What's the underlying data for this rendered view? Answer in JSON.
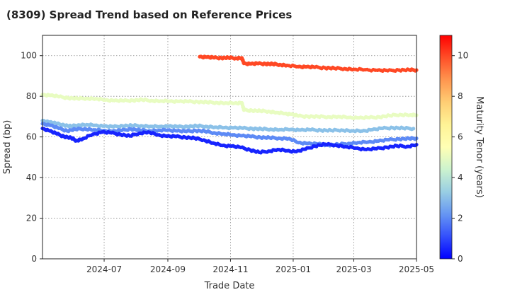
{
  "chart_data": {
    "type": "scatter",
    "title": "(8309)   Spread Trend based on Reference Prices",
    "xlabel": "Trade Date",
    "ylabel": "Spread (bp)",
    "xlim": [
      "2024-05-02",
      "2025-05-01"
    ],
    "ylim": [
      0,
      110
    ],
    "x_ticks": [
      "2024-07",
      "2024-09",
      "2024-11",
      "2025-01",
      "2025-03",
      "2025-05"
    ],
    "y_ticks": [
      0,
      20,
      40,
      60,
      80,
      100
    ],
    "grid": true,
    "colorbar": {
      "label": "Maturity Tenor (years)",
      "range": [
        0,
        11
      ],
      "ticks": [
        0,
        2,
        4,
        6,
        8,
        10
      ],
      "colormap": "rainbow"
    },
    "series": [
      {
        "tenor": 10.0,
        "points": [
          [
            "2024-10-02",
            99.5
          ],
          [
            "2024-10-09",
            99.3
          ],
          [
            "2024-10-16",
            99.0
          ],
          [
            "2024-10-23",
            98.9
          ],
          [
            "2024-10-30",
            99.0
          ],
          [
            "2024-11-06",
            98.8
          ],
          [
            "2024-11-12",
            98.9
          ],
          [
            "2024-11-14",
            96.2
          ],
          [
            "2024-11-21",
            96.0
          ],
          [
            "2024-11-28",
            96.1
          ],
          [
            "2024-12-05",
            96.0
          ],
          [
            "2024-12-12",
            95.9
          ],
          [
            "2024-12-19",
            95.6
          ],
          [
            "2024-12-26",
            95.2
          ],
          [
            "2025-01-06",
            94.6
          ],
          [
            "2025-01-14",
            94.5
          ],
          [
            "2025-01-22",
            94.3
          ],
          [
            "2025-02-01",
            94.0
          ],
          [
            "2025-02-10",
            93.8
          ],
          [
            "2025-02-20",
            93.6
          ],
          [
            "2025-03-01",
            93.3
          ],
          [
            "2025-03-12",
            93.1
          ],
          [
            "2025-03-24",
            92.8
          ],
          [
            "2025-04-03",
            92.6
          ],
          [
            "2025-04-14",
            92.9
          ],
          [
            "2025-04-24",
            93.0
          ],
          [
            "2025-05-01",
            92.9
          ]
        ]
      },
      {
        "tenor": 5.0,
        "points": [
          [
            "2024-05-02",
            80.8
          ],
          [
            "2024-05-10",
            80.5
          ],
          [
            "2024-05-18",
            79.8
          ],
          [
            "2024-05-27",
            79.2
          ],
          [
            "2024-06-05",
            78.9
          ],
          [
            "2024-06-14",
            79.0
          ],
          [
            "2024-06-23",
            78.8
          ],
          [
            "2024-07-02",
            78.2
          ],
          [
            "2024-07-11",
            77.9
          ],
          [
            "2024-07-20",
            77.8
          ],
          [
            "2024-07-29",
            78.0
          ],
          [
            "2024-08-07",
            78.3
          ],
          [
            "2024-08-16",
            77.9
          ],
          [
            "2024-08-25",
            77.7
          ],
          [
            "2024-09-03",
            77.6
          ],
          [
            "2024-09-12",
            77.5
          ],
          [
            "2024-09-21",
            77.4
          ],
          [
            "2024-09-30",
            77.3
          ],
          [
            "2024-10-09",
            77.1
          ],
          [
            "2024-10-18",
            76.9
          ],
          [
            "2024-10-27",
            76.7
          ],
          [
            "2024-11-05",
            76.6
          ],
          [
            "2024-11-12",
            76.8
          ],
          [
            "2024-11-14",
            73.2
          ],
          [
            "2024-11-22",
            73.0
          ],
          [
            "2024-11-30",
            72.8
          ],
          [
            "2024-12-08",
            72.6
          ],
          [
            "2024-12-16",
            72.0
          ],
          [
            "2024-12-24",
            71.5
          ],
          [
            "2024-12-30",
            71.2
          ],
          [
            "2025-01-06",
            70.3
          ],
          [
            "2025-01-15",
            70.1
          ],
          [
            "2025-01-25",
            70.0
          ],
          [
            "2025-02-04",
            69.9
          ],
          [
            "2025-02-14",
            70.0
          ],
          [
            "2025-02-24",
            69.6
          ],
          [
            "2025-03-06",
            69.4
          ],
          [
            "2025-03-16",
            69.5
          ],
          [
            "2025-03-26",
            69.8
          ],
          [
            "2025-04-05",
            70.5
          ],
          [
            "2025-04-15",
            71.0
          ],
          [
            "2025-04-25",
            70.8
          ],
          [
            "2025-05-01",
            70.7
          ]
        ]
      },
      {
        "tenor": 3.0,
        "points": [
          [
            "2024-05-02",
            68.0
          ],
          [
            "2024-05-09",
            67.3
          ],
          [
            "2024-05-16",
            66.5
          ],
          [
            "2024-05-23",
            65.8
          ],
          [
            "2024-05-30",
            65.2
          ],
          [
            "2024-06-06",
            65.9
          ],
          [
            "2024-06-14",
            66.0
          ],
          [
            "2024-06-22",
            65.7
          ],
          [
            "2024-07-01",
            65.3
          ],
          [
            "2024-07-10",
            65.0
          ],
          [
            "2024-07-19",
            65.4
          ],
          [
            "2024-07-28",
            65.6
          ],
          [
            "2024-08-06",
            65.5
          ],
          [
            "2024-08-15",
            65.2
          ],
          [
            "2024-08-24",
            65.1
          ],
          [
            "2024-09-02",
            65.3
          ],
          [
            "2024-09-11",
            65.0
          ],
          [
            "2024-09-20",
            65.1
          ],
          [
            "2024-09-29",
            65.4
          ],
          [
            "2024-10-08",
            65.2
          ],
          [
            "2024-10-17",
            64.8
          ],
          [
            "2024-10-26",
            64.6
          ],
          [
            "2024-11-04",
            64.5
          ],
          [
            "2024-11-13",
            64.3
          ],
          [
            "2024-11-22",
            64.1
          ],
          [
            "2024-12-01",
            63.9
          ],
          [
            "2024-12-10",
            63.8
          ],
          [
            "2024-12-19",
            63.6
          ],
          [
            "2024-12-30",
            63.7
          ],
          [
            "2025-01-08",
            63.4
          ],
          [
            "2025-01-18",
            63.5
          ],
          [
            "2025-01-28",
            63.3
          ],
          [
            "2025-02-07",
            63.2
          ],
          [
            "2025-02-17",
            63.4
          ],
          [
            "2025-02-27",
            63.0
          ],
          [
            "2025-03-09",
            62.9
          ],
          [
            "2025-03-19",
            63.6
          ],
          [
            "2025-03-29",
            64.2
          ],
          [
            "2025-04-08",
            64.5
          ],
          [
            "2025-04-18",
            64.3
          ],
          [
            "2025-04-28",
            64.1
          ]
        ]
      },
      {
        "tenor": 2.0,
        "points": [
          [
            "2024-05-02",
            66.5
          ],
          [
            "2024-05-10",
            65.7
          ],
          [
            "2024-05-18",
            64.2
          ],
          [
            "2024-05-26",
            63.0
          ],
          [
            "2024-06-03",
            63.8
          ],
          [
            "2024-06-12",
            64.0
          ],
          [
            "2024-06-21",
            63.5
          ],
          [
            "2024-06-30",
            63.1
          ],
          [
            "2024-07-09",
            62.8
          ],
          [
            "2024-07-18",
            63.2
          ],
          [
            "2024-07-27",
            63.9
          ],
          [
            "2024-08-05",
            63.3
          ],
          [
            "2024-08-14",
            63.0
          ],
          [
            "2024-08-23",
            63.2
          ],
          [
            "2024-09-01",
            63.4
          ],
          [
            "2024-09-10",
            63.0
          ],
          [
            "2024-09-19",
            62.7
          ],
          [
            "2024-09-28",
            63.1
          ],
          [
            "2024-10-07",
            62.8
          ],
          [
            "2024-10-16",
            62.0
          ],
          [
            "2024-10-25",
            61.5
          ],
          [
            "2024-11-03",
            61.0
          ],
          [
            "2024-11-12",
            60.6
          ],
          [
            "2024-11-21",
            60.2
          ],
          [
            "2024-11-30",
            59.8
          ],
          [
            "2024-12-09",
            59.6
          ],
          [
            "2024-12-18",
            59.4
          ],
          [
            "2024-12-28",
            59.2
          ],
          [
            "2025-01-06",
            57.2
          ],
          [
            "2025-01-15",
            56.8
          ],
          [
            "2025-01-25",
            56.5
          ],
          [
            "2025-02-04",
            56.0
          ],
          [
            "2025-02-14",
            56.3
          ],
          [
            "2025-02-24",
            56.8
          ],
          [
            "2025-03-05",
            57.2
          ],
          [
            "2025-03-15",
            57.5
          ],
          [
            "2025-03-25",
            58.0
          ],
          [
            "2025-04-04",
            58.6
          ],
          [
            "2025-04-14",
            59.0
          ],
          [
            "2025-04-24",
            59.2
          ],
          [
            "2025-05-01",
            59.3
          ]
        ]
      },
      {
        "tenor": 0.5,
        "points": [
          [
            "2024-05-02",
            64.2
          ],
          [
            "2024-05-09",
            63.0
          ],
          [
            "2024-05-16",
            61.5
          ],
          [
            "2024-05-23",
            60.2
          ],
          [
            "2024-05-30",
            59.5
          ],
          [
            "2024-06-04",
            58.2
          ],
          [
            "2024-06-10",
            59.0
          ],
          [
            "2024-06-20",
            61.3
          ],
          [
            "2024-06-29",
            62.4
          ],
          [
            "2024-07-08",
            62.0
          ],
          [
            "2024-07-17",
            61.2
          ],
          [
            "2024-07-26",
            60.5
          ],
          [
            "2024-08-04",
            61.8
          ],
          [
            "2024-08-13",
            62.4
          ],
          [
            "2024-08-22",
            61.0
          ],
          [
            "2024-08-31",
            60.4
          ],
          [
            "2024-09-09",
            60.2
          ],
          [
            "2024-09-18",
            59.8
          ],
          [
            "2024-09-27",
            59.4
          ],
          [
            "2024-10-06",
            58.5
          ],
          [
            "2024-10-15",
            57.0
          ],
          [
            "2024-10-24",
            55.8
          ],
          [
            "2024-11-02",
            55.5
          ],
          [
            "2024-11-11",
            54.8
          ],
          [
            "2024-11-20",
            53.6
          ],
          [
            "2024-11-29",
            52.4
          ],
          [
            "2024-12-08",
            53.0
          ],
          [
            "2024-12-17",
            53.8
          ],
          [
            "2024-12-26",
            53.2
          ],
          [
            "2025-01-04",
            52.8
          ],
          [
            "2025-01-13",
            54.0
          ],
          [
            "2025-01-22",
            55.5
          ],
          [
            "2025-02-01",
            56.4
          ],
          [
            "2025-02-11",
            56.0
          ],
          [
            "2025-02-21",
            55.2
          ],
          [
            "2025-03-03",
            54.5
          ],
          [
            "2025-03-13",
            53.8
          ],
          [
            "2025-03-23",
            54.2
          ],
          [
            "2025-04-02",
            54.9
          ],
          [
            "2025-04-12",
            55.6
          ],
          [
            "2025-04-22",
            55.3
          ],
          [
            "2025-05-01",
            56.2
          ]
        ]
      }
    ]
  }
}
